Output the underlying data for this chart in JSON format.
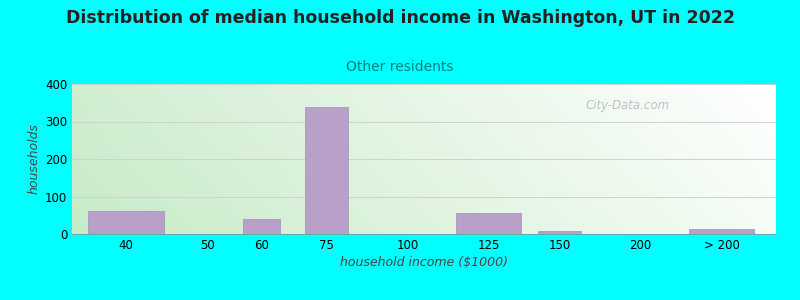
{
  "title": "Distribution of median household income in Washington, UT in 2022",
  "subtitle": "Other residents",
  "xlabel": "household income ($1000)",
  "ylabel": "households",
  "background_color": "#00FFFF",
  "bar_color": "#b8a0c8",
  "bar_edge_color": "#a090b8",
  "categories": [
    "40",
    "50",
    "60",
    "75",
    "100",
    "125",
    "150",
    "200",
    "> 200"
  ],
  "values": [
    62,
    0,
    40,
    340,
    0,
    55,
    8,
    0,
    13
  ],
  "ylim": [
    0,
    400
  ],
  "yticks": [
    0,
    100,
    200,
    300,
    400
  ],
  "watermark": "City-Data.com",
  "title_fontsize": 12.5,
  "subtitle_fontsize": 10,
  "subtitle_color": "#008080",
  "axis_label_fontsize": 9,
  "tick_fontsize": 8.5,
  "grad_left": "#c8e8c0",
  "grad_right": "#f0f8f0",
  "grad_top": "#f5faf5",
  "grid_color": "#d0d0d0"
}
